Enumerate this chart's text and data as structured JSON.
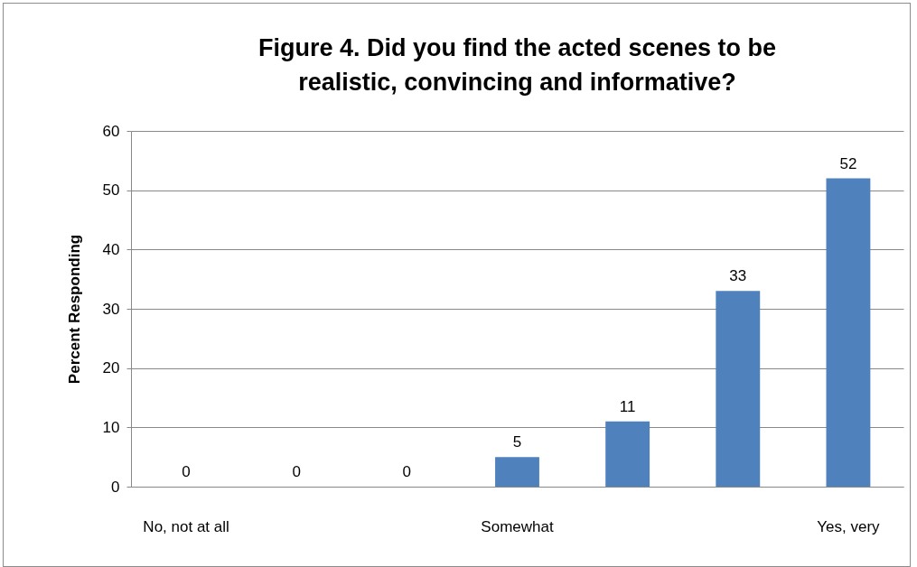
{
  "chart_data": {
    "type": "bar",
    "title": "Figure 4. Did you find the acted scenes to be realistic, convincing and informative?",
    "ylabel": "Percent Responding",
    "categories": [
      "No, not at all",
      null,
      null,
      "Somewhat",
      null,
      null,
      "Yes, very"
    ],
    "values": [
      0,
      0,
      0,
      5,
      11,
      33,
      52
    ],
    "color": "#4f81bd",
    "ylim": [
      0,
      60
    ],
    "yticks": [
      0,
      10,
      20,
      30,
      40,
      50,
      60
    ],
    "grid": "y",
    "data_labels": true
  }
}
